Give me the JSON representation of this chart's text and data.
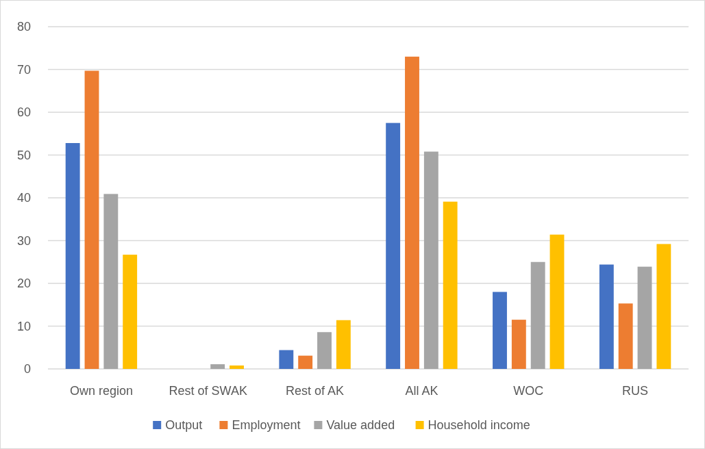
{
  "chart_data": {
    "type": "bar",
    "categories": [
      "Own region",
      "Rest of SWAK",
      "Rest of AK",
      "All AK",
      "WOC",
      "RUS"
    ],
    "series": [
      {
        "name": "Output",
        "color": "#4472c4",
        "values": [
          52.8,
          0,
          4.4,
          57.5,
          18.0,
          24.4
        ]
      },
      {
        "name": "Employment",
        "color": "#ed7d31",
        "values": [
          69.7,
          0,
          3.1,
          73.0,
          11.5,
          15.3
        ]
      },
      {
        "name": "Value added",
        "color": "#a5a5a5",
        "values": [
          40.9,
          1.1,
          8.6,
          50.8,
          25.0,
          23.9
        ]
      },
      {
        "name": "Household income",
        "color": "#ffc000",
        "values": [
          26.7,
          0.8,
          11.4,
          39.1,
          31.4,
          29.2
        ]
      }
    ],
    "ylim": [
      0,
      80
    ],
    "yticks": [
      0,
      10,
      20,
      30,
      40,
      50,
      60,
      70,
      80
    ],
    "grid": "y",
    "legend": "bottom"
  }
}
